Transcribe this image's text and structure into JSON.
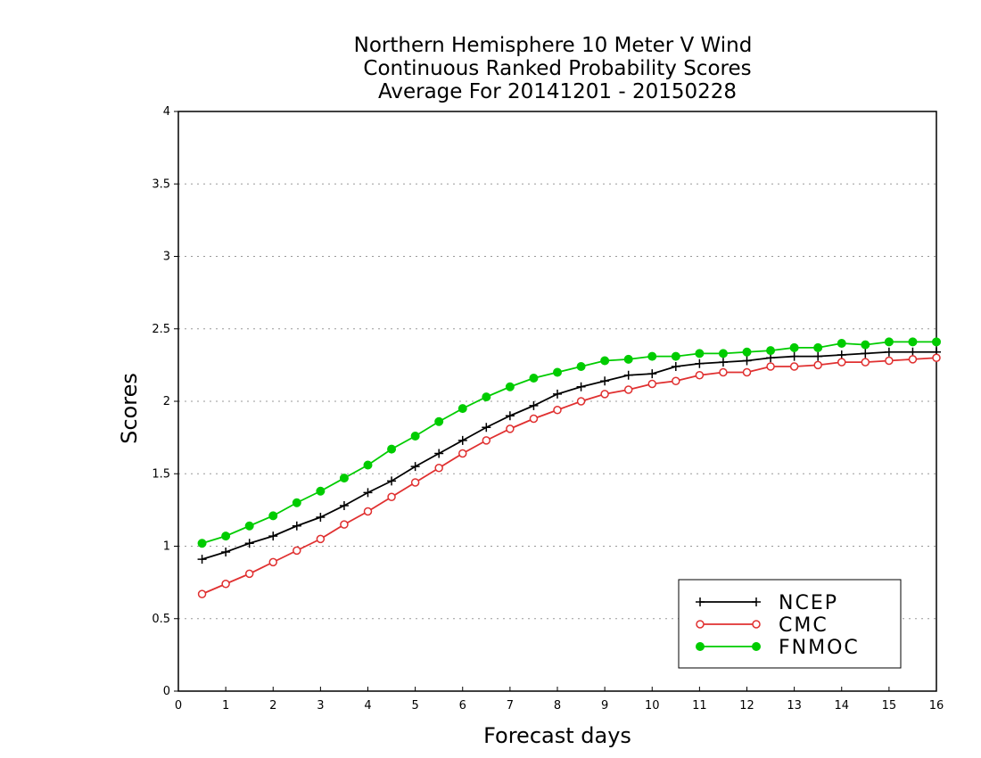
{
  "chart_data": {
    "type": "line",
    "title_lines": [
      "Northern Hemisphere 10 Meter V Wind",
      "Continuous Ranked Probability Scores",
      "Average For 20141201 - 20150228"
    ],
    "xlabel": "Forecast days",
    "ylabel": "Scores",
    "xlim": [
      0,
      16
    ],
    "ylim": [
      0,
      4
    ],
    "x_ticks": [
      "0",
      "1",
      "2",
      "3",
      "4",
      "5",
      "6",
      "7",
      "8",
      "9",
      "10",
      "11",
      "12",
      "13",
      "14",
      "15",
      "16"
    ],
    "y_ticks": [
      "0",
      "0.5",
      "1",
      "1.5",
      "2",
      "2.5",
      "3",
      "3.5",
      "4"
    ],
    "grid": "horizontal dotted",
    "legend_position": "bottom-right",
    "x": [
      0.5,
      1,
      1.5,
      2,
      2.5,
      3,
      3.5,
      4,
      4.5,
      5,
      5.5,
      6,
      6.5,
      7,
      7.5,
      8,
      8.5,
      9,
      9.5,
      10,
      10.5,
      11,
      11.5,
      12,
      12.5,
      13,
      13.5,
      14,
      14.5,
      15,
      15.5,
      16
    ],
    "series": [
      {
        "name": "NCEP",
        "color": "#000000",
        "marker": "plus",
        "values": [
          0.91,
          0.96,
          1.02,
          1.07,
          1.14,
          1.2,
          1.28,
          1.37,
          1.45,
          1.55,
          1.64,
          1.73,
          1.82,
          1.9,
          1.97,
          2.05,
          2.1,
          2.14,
          2.18,
          2.19,
          2.24,
          2.26,
          2.27,
          2.28,
          2.3,
          2.31,
          2.31,
          2.32,
          2.33,
          2.34,
          2.34,
          2.34
        ]
      },
      {
        "name": "CMC",
        "color": "#e03030",
        "marker": "open-circle",
        "values": [
          0.67,
          0.74,
          0.81,
          0.89,
          0.97,
          1.05,
          1.15,
          1.24,
          1.34,
          1.44,
          1.54,
          1.64,
          1.73,
          1.81,
          1.88,
          1.94,
          2.0,
          2.05,
          2.08,
          2.12,
          2.14,
          2.18,
          2.2,
          2.2,
          2.24,
          2.24,
          2.25,
          2.27,
          2.27,
          2.28,
          2.29,
          2.3
        ]
      },
      {
        "name": "FNMOC",
        "color": "#00cc00",
        "marker": "filled-circle",
        "values": [
          1.02,
          1.07,
          1.14,
          1.21,
          1.3,
          1.38,
          1.47,
          1.56,
          1.67,
          1.76,
          1.86,
          1.95,
          2.03,
          2.1,
          2.16,
          2.2,
          2.24,
          2.28,
          2.29,
          2.31,
          2.31,
          2.33,
          2.33,
          2.34,
          2.35,
          2.37,
          2.37,
          2.4,
          2.39,
          2.41,
          2.41,
          2.41
        ]
      }
    ]
  }
}
